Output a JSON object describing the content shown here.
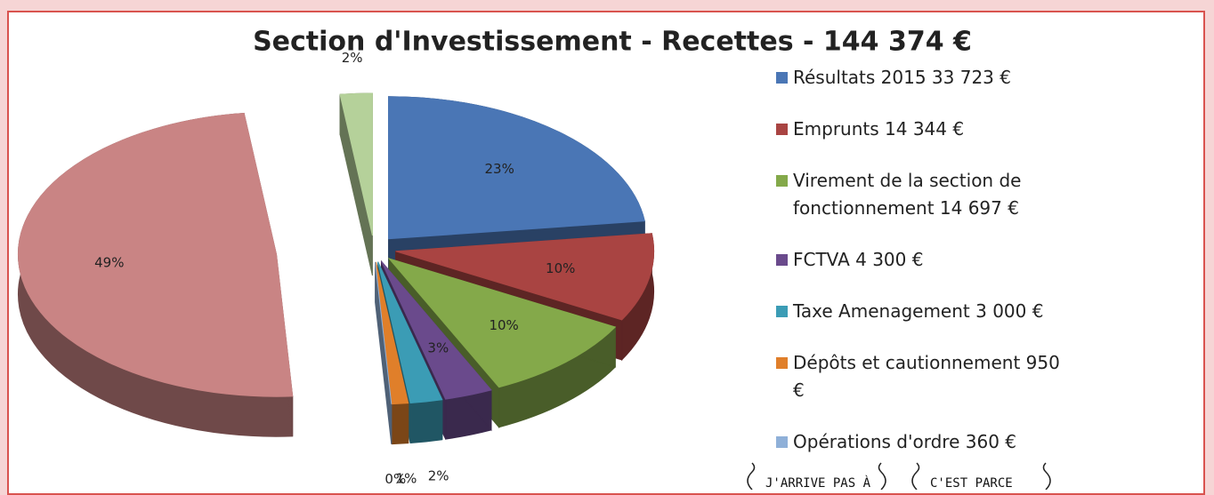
{
  "chart_data": {
    "type": "pie",
    "title": "Section d'Investissement - Recettes - 144 374 €",
    "categories": [
      "Résultats 2015 33 723 €",
      "Emprunts 14 344 €",
      "Virement de la section de fonctionnement 14 697 €",
      "FCTVA 4 300 €",
      "Taxe Amenagement 3 000 €",
      "Dépôts et cautionnement 950 €",
      "Opérations d'ordre 360 €",
      null,
      null
    ],
    "values": [
      23,
      10,
      10,
      3,
      2,
      1,
      0,
      49,
      2
    ],
    "value_labels": [
      "23%",
      "10%",
      "10%",
      "3%",
      "2%",
      "1%",
      "0%",
      "49%",
      "2%"
    ],
    "colors": [
      "#4a76b5",
      "#a94442",
      "#84a94a",
      "#6a4a8c",
      "#3b9cb5",
      "#e07f2a",
      "#8fb0d8",
      "#c98484",
      "#b5d19a"
    ],
    "legend": "right"
  },
  "cartoon": {
    "bubbles": [
      "J'ARRIVE PAS À",
      "C'EST PARCE"
    ]
  }
}
